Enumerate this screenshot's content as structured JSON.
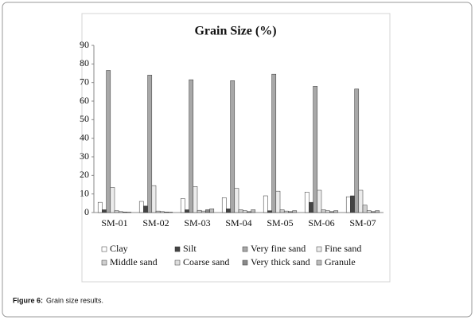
{
  "chart_data": {
    "type": "bar",
    "title": "Grain Size (%)",
    "categories": [
      "SM-01",
      "SM-02",
      "SM-03",
      "SM-04",
      "SM-05",
      "SM-06",
      "SM-07"
    ],
    "series": [
      {
        "name": "Clay",
        "color": "#ffffff",
        "values": [
          5.5,
          6,
          7.5,
          8,
          9,
          11,
          8.5
        ]
      },
      {
        "name": "Silt",
        "color": "#444444",
        "values": [
          1.5,
          3.5,
          1.5,
          2,
          1,
          5.5,
          9
        ]
      },
      {
        "name": "Very fine sand",
        "color": "#a8a8a8",
        "values": [
          76.5,
          74,
          71.5,
          71,
          74.5,
          68,
          66.5
        ]
      },
      {
        "name": "Fine sand",
        "color": "#ececec",
        "values": [
          13.5,
          14.5,
          14,
          13,
          11.5,
          12,
          12
        ]
      },
      {
        "name": "Middle sand",
        "color": "#cfcfcf",
        "values": [
          1,
          0.8,
          1.2,
          1.5,
          1.5,
          1.5,
          4
        ]
      },
      {
        "name": "Coarse sand",
        "color": "#dedede",
        "values": [
          0.5,
          0.5,
          0.8,
          1,
          0.8,
          1,
          1
        ]
      },
      {
        "name": "Very thick sand",
        "color": "#8a8a8a",
        "values": [
          0.3,
          0.3,
          1.5,
          0.5,
          0.5,
          0.5,
          0.5
        ]
      },
      {
        "name": "Granule",
        "color": "#bcbcbc",
        "values": [
          0.2,
          0.2,
          2,
          1.5,
          1,
          1,
          1
        ]
      }
    ],
    "ylim": [
      0,
      90
    ],
    "yticks": [
      0,
      10,
      20,
      30,
      40,
      50,
      60,
      70,
      80,
      90
    ],
    "grid": false
  },
  "caption": {
    "label": "Figure 6:",
    "text": "Grain size results."
  }
}
